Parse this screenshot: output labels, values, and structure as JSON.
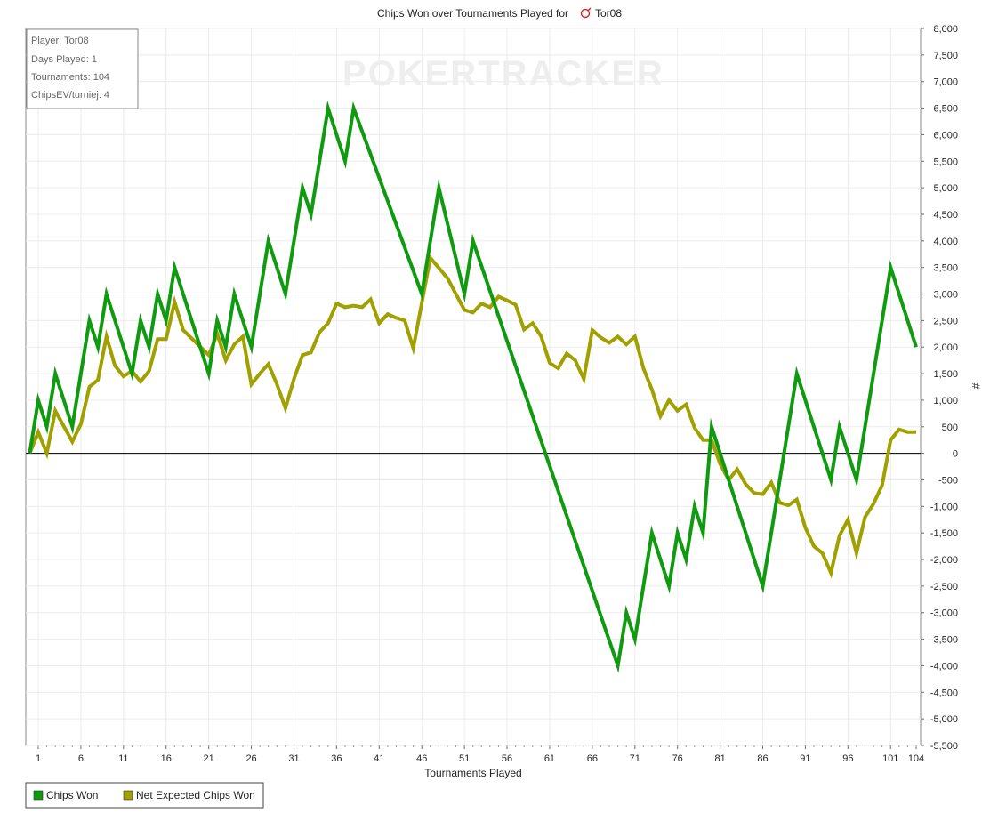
{
  "chart_data": {
    "type": "line",
    "title": "Chips Won over Tournaments Played for Tor08",
    "title_prefix": "Chips Won over Tournaments Played for",
    "player_name": "Tor08",
    "xlabel": "Tournaments Played",
    "ylabel": "#",
    "xlim": [
      1,
      104
    ],
    "ylim": [
      -5500,
      8000
    ],
    "y_tick_step": 500,
    "x_ticks": [
      1,
      6,
      11,
      16,
      21,
      26,
      31,
      36,
      41,
      46,
      51,
      56,
      61,
      66,
      71,
      76,
      81,
      86,
      91,
      96,
      101,
      104
    ],
    "y_ticks": [
      "8,000",
      "7,500",
      "7,000",
      "6,500",
      "6,000",
      "5,500",
      "5,000",
      "4,500",
      "4,000",
      "3,500",
      "3,000",
      "2,500",
      "2,000",
      "1,500",
      "1,000",
      "500",
      "0",
      "-500",
      "-1,000",
      "-1,500",
      "-2,000",
      "-2,500",
      "-3,000",
      "-3,500",
      "-4,000",
      "-4,500",
      "-5,000",
      "-5,500"
    ],
    "grid": true,
    "legend_position": "bottom-left",
    "watermark": "POKERTRACKER",
    "series": [
      {
        "name": "Chips Won",
        "color": "#109a10",
        "x": [
          0,
          1,
          2,
          3,
          5,
          6,
          7,
          8,
          9,
          12,
          13,
          14,
          15,
          16,
          17,
          21,
          22,
          23,
          24,
          26,
          28,
          30,
          32,
          33,
          35,
          37,
          38,
          46,
          48,
          51,
          52,
          69,
          70,
          71,
          73,
          75,
          76,
          77,
          78,
          79,
          80,
          86,
          90,
          94,
          95,
          97,
          101,
          104
        ],
        "values": [
          0,
          1000,
          500,
          1500,
          500,
          1500,
          2500,
          2000,
          3000,
          1500,
          2500,
          2000,
          3000,
          2500,
          3500,
          1500,
          2500,
          2000,
          3000,
          2000,
          4000,
          3000,
          5000,
          4500,
          6500,
          5500,
          6500,
          3000,
          5000,
          3000,
          4000,
          -4000,
          -3000,
          -3500,
          -1500,
          -2500,
          -1500,
          -2000,
          -1000,
          -1500,
          500,
          -2500,
          1500,
          -500,
          500,
          -500,
          3500,
          2000
        ]
      },
      {
        "name": "Net Expected Chips Won",
        "color": "#a0a000",
        "x": [
          0,
          1,
          2,
          3,
          5,
          6,
          7,
          8,
          9,
          10,
          11,
          12,
          13,
          14,
          15,
          16,
          17,
          18,
          21,
          22,
          23,
          24,
          25,
          26,
          27,
          28,
          29,
          30,
          31,
          32,
          33,
          34,
          35,
          36,
          37,
          38,
          39,
          40,
          41,
          42,
          43,
          44,
          45,
          47,
          49,
          50,
          51,
          52,
          53,
          54,
          55,
          56,
          57,
          58,
          59,
          60,
          61,
          62,
          63,
          64,
          65,
          66,
          67,
          68,
          69,
          70,
          71,
          72,
          73,
          74,
          75,
          76,
          77,
          78,
          79,
          80,
          81,
          82,
          83,
          84,
          85,
          86,
          87,
          88,
          89,
          90,
          91,
          92,
          93,
          94,
          95,
          96,
          97,
          98,
          99,
          100,
          101,
          102,
          103,
          104
        ],
        "values": [
          0,
          400,
          0,
          800,
          220,
          550,
          1250,
          1380,
          2200,
          1650,
          1450,
          1550,
          1350,
          1550,
          2150,
          2150,
          2850,
          2320,
          1850,
          2250,
          1750,
          2050,
          2200,
          1300,
          1500,
          1680,
          1300,
          850,
          1400,
          1850,
          1900,
          2280,
          2450,
          2820,
          2750,
          2780,
          2750,
          2900,
          2450,
          2620,
          2550,
          2500,
          1980,
          3680,
          3300,
          3000,
          2700,
          2650,
          2820,
          2750,
          2950,
          2880,
          2800,
          2330,
          2450,
          2200,
          1700,
          1600,
          1880,
          1750,
          1400,
          2320,
          2180,
          2080,
          2200,
          2050,
          2200,
          1600,
          1200,
          700,
          1000,
          800,
          920,
          480,
          250,
          250,
          -200,
          -500,
          -300,
          -580,
          -750,
          -770,
          -550,
          -930,
          -980,
          -870,
          -1400,
          -1750,
          -1880,
          -2250,
          -1550,
          -1250,
          -1880,
          -1200,
          -950,
          -600,
          250,
          450,
          400,
          400
        ]
      }
    ]
  },
  "info_box": {
    "player": "Player: Tor08",
    "days_played": "Days Played: 1",
    "tournaments": "Tournaments: 104",
    "chips_ev": "ChipsEV/turniej: 4"
  },
  "legend": {
    "items": [
      {
        "label": "Chips Won",
        "color": "#109a10"
      },
      {
        "label": "Net Expected Chips Won",
        "color": "#a0a000"
      }
    ]
  }
}
